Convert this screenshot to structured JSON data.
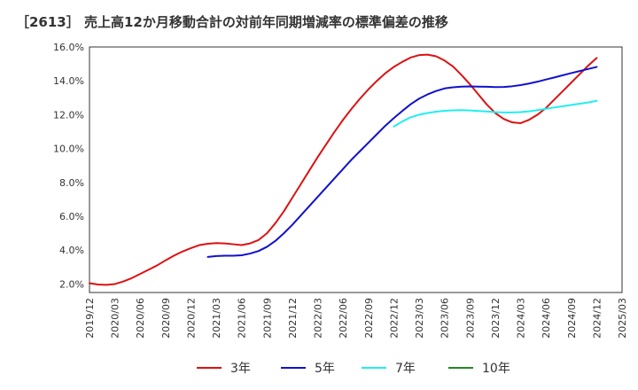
{
  "title": "［2613］ 売上高12か月移動合計の対前年同期増減率の標準偏差の推移",
  "chart_data": {
    "type": "line",
    "title": "［2613］ 売上高12か月移動合計の対前年同期増減率の標準偏差の推移",
    "xlabel": "",
    "ylabel": "",
    "x_ticks": [
      "2019/12",
      "2020/03",
      "2020/06",
      "2020/09",
      "2020/12",
      "2021/03",
      "2021/06",
      "2021/09",
      "2021/12",
      "2022/03",
      "2022/06",
      "2022/09",
      "2022/12",
      "2023/03",
      "2023/06",
      "2023/09",
      "2023/12",
      "2024/03",
      "2024/06",
      "2024/09",
      "2024/12",
      "2025/03"
    ],
    "y_ticks": [
      "2.0%",
      "4.0%",
      "6.0%",
      "8.0%",
      "10.0%",
      "12.0%",
      "14.0%",
      "16.0%"
    ],
    "ylim": [
      1.5,
      16.0
    ],
    "grid": true,
    "legend_position": "bottom",
    "series": [
      {
        "name": "3年",
        "color": "#dd1111",
        "values": [
          [
            "2019/12",
            2.05
          ],
          [
            "2020/01",
            1.97
          ],
          [
            "2020/02",
            1.95
          ],
          [
            "2020/03",
            2.0
          ],
          [
            "2020/04",
            2.15
          ],
          [
            "2020/05",
            2.35
          ],
          [
            "2020/06",
            2.6
          ],
          [
            "2020/07",
            2.85
          ],
          [
            "2020/08",
            3.1
          ],
          [
            "2020/09",
            3.4
          ],
          [
            "2020/10",
            3.68
          ],
          [
            "2020/11",
            3.92
          ],
          [
            "2020/12",
            4.12
          ],
          [
            "2021/01",
            4.3
          ],
          [
            "2021/02",
            4.38
          ],
          [
            "2021/03",
            4.42
          ],
          [
            "2021/04",
            4.4
          ],
          [
            "2021/05",
            4.35
          ],
          [
            "2021/06",
            4.3
          ],
          [
            "2021/07",
            4.4
          ],
          [
            "2021/08",
            4.6
          ],
          [
            "2021/09",
            5.0
          ],
          [
            "2021/10",
            5.6
          ],
          [
            "2021/11",
            6.3
          ],
          [
            "2021/12",
            7.1
          ],
          [
            "2022/01",
            7.9
          ],
          [
            "2022/02",
            8.7
          ],
          [
            "2022/03",
            9.5
          ],
          [
            "2022/04",
            10.25
          ],
          [
            "2022/05",
            11.0
          ],
          [
            "2022/06",
            11.7
          ],
          [
            "2022/07",
            12.35
          ],
          [
            "2022/08",
            12.95
          ],
          [
            "2022/09",
            13.5
          ],
          [
            "2022/10",
            14.0
          ],
          [
            "2022/11",
            14.45
          ],
          [
            "2022/12",
            14.82
          ],
          [
            "2023/01",
            15.12
          ],
          [
            "2023/02",
            15.38
          ],
          [
            "2023/03",
            15.52
          ],
          [
            "2023/04",
            15.55
          ],
          [
            "2023/05",
            15.45
          ],
          [
            "2023/06",
            15.2
          ],
          [
            "2023/07",
            14.85
          ],
          [
            "2023/08",
            14.35
          ],
          [
            "2023/09",
            13.8
          ],
          [
            "2023/10",
            13.2
          ],
          [
            "2023/11",
            12.6
          ],
          [
            "2023/12",
            12.1
          ],
          [
            "2024/01",
            11.75
          ],
          [
            "2024/02",
            11.55
          ],
          [
            "2024/03",
            11.5
          ],
          [
            "2024/04",
            11.7
          ],
          [
            "2024/05",
            12.0
          ],
          [
            "2024/06",
            12.4
          ],
          [
            "2024/07",
            12.9
          ],
          [
            "2024/08",
            13.4
          ],
          [
            "2024/09",
            13.9
          ],
          [
            "2024/10",
            14.4
          ],
          [
            "2024/11",
            14.9
          ],
          [
            "2024/12",
            15.35
          ]
        ]
      },
      {
        "name": "5年",
        "color": "#1111cc",
        "values": [
          [
            "2021/02",
            3.6
          ],
          [
            "2021/03",
            3.65
          ],
          [
            "2021/04",
            3.67
          ],
          [
            "2021/05",
            3.67
          ],
          [
            "2021/06",
            3.7
          ],
          [
            "2021/07",
            3.8
          ],
          [
            "2021/08",
            3.95
          ],
          [
            "2021/09",
            4.2
          ],
          [
            "2021/10",
            4.55
          ],
          [
            "2021/11",
            5.0
          ],
          [
            "2021/12",
            5.5
          ],
          [
            "2022/01",
            6.05
          ],
          [
            "2022/02",
            6.6
          ],
          [
            "2022/03",
            7.15
          ],
          [
            "2022/04",
            7.7
          ],
          [
            "2022/05",
            8.25
          ],
          [
            "2022/06",
            8.8
          ],
          [
            "2022/07",
            9.35
          ],
          [
            "2022/08",
            9.85
          ],
          [
            "2022/09",
            10.35
          ],
          [
            "2022/10",
            10.85
          ],
          [
            "2022/11",
            11.35
          ],
          [
            "2022/12",
            11.8
          ],
          [
            "2023/01",
            12.22
          ],
          [
            "2023/02",
            12.62
          ],
          [
            "2023/03",
            12.95
          ],
          [
            "2023/04",
            13.2
          ],
          [
            "2023/05",
            13.4
          ],
          [
            "2023/06",
            13.55
          ],
          [
            "2023/07",
            13.62
          ],
          [
            "2023/08",
            13.66
          ],
          [
            "2023/09",
            13.67
          ],
          [
            "2023/10",
            13.66
          ],
          [
            "2023/11",
            13.65
          ],
          [
            "2023/12",
            13.63
          ],
          [
            "2024/01",
            13.64
          ],
          [
            "2024/02",
            13.68
          ],
          [
            "2024/03",
            13.75
          ],
          [
            "2024/04",
            13.84
          ],
          [
            "2024/05",
            13.95
          ],
          [
            "2024/06",
            14.08
          ],
          [
            "2024/07",
            14.2
          ],
          [
            "2024/08",
            14.33
          ],
          [
            "2024/09",
            14.46
          ],
          [
            "2024/10",
            14.58
          ],
          [
            "2024/11",
            14.7
          ],
          [
            "2024/12",
            14.82
          ]
        ]
      },
      {
        "name": "7年",
        "color": "#22eeee",
        "values": [
          [
            "2022/12",
            11.3
          ],
          [
            "2023/01",
            11.6
          ],
          [
            "2023/02",
            11.85
          ],
          [
            "2023/03",
            12.0
          ],
          [
            "2023/04",
            12.1
          ],
          [
            "2023/05",
            12.18
          ],
          [
            "2023/06",
            12.23
          ],
          [
            "2023/07",
            12.26
          ],
          [
            "2023/08",
            12.27
          ],
          [
            "2023/09",
            12.25
          ],
          [
            "2023/10",
            12.22
          ],
          [
            "2023/11",
            12.19
          ],
          [
            "2023/12",
            12.15
          ],
          [
            "2024/01",
            12.13
          ],
          [
            "2024/02",
            12.13
          ],
          [
            "2024/03",
            12.15
          ],
          [
            "2024/04",
            12.2
          ],
          [
            "2024/05",
            12.27
          ],
          [
            "2024/06",
            12.35
          ],
          [
            "2024/07",
            12.43
          ],
          [
            "2024/08",
            12.5
          ],
          [
            "2024/09",
            12.58
          ],
          [
            "2024/10",
            12.65
          ],
          [
            "2024/11",
            12.72
          ],
          [
            "2024/12",
            12.82
          ]
        ]
      },
      {
        "name": "10年",
        "color": "#228822",
        "values": []
      }
    ]
  }
}
